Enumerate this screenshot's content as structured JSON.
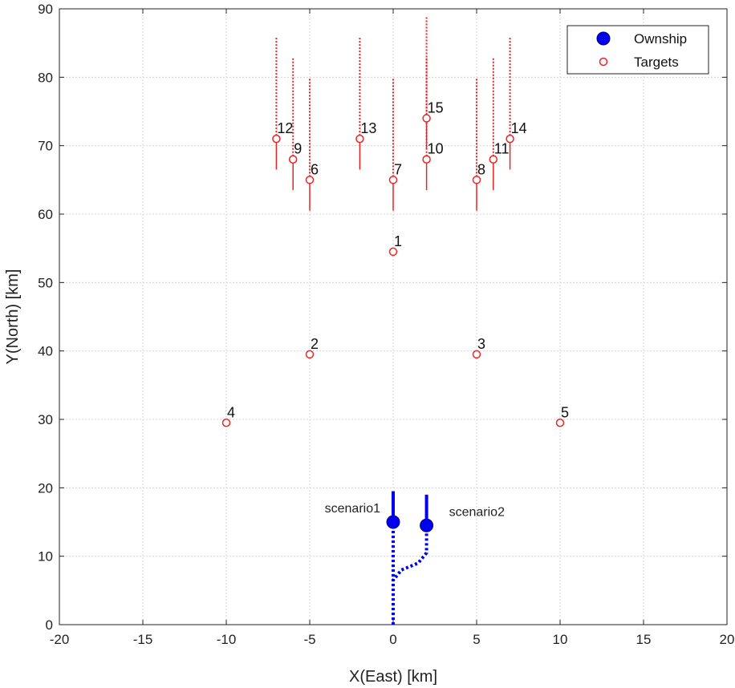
{
  "chart_data": {
    "type": "scatter",
    "xlabel": "X(East) [km]",
    "ylabel": "Y(North) [km]",
    "xlim": [
      -20,
      20
    ],
    "ylim": [
      0,
      90
    ],
    "xticks": [
      -20,
      -15,
      -10,
      -5,
      0,
      5,
      10,
      15,
      20
    ],
    "yticks": [
      0,
      10,
      20,
      30,
      40,
      50,
      60,
      70,
      80,
      90
    ],
    "grid": true,
    "legend": {
      "placement": "top-right",
      "entries": [
        {
          "name": "Ownship",
          "marker": "filled-circle",
          "color": "#0000ee"
        },
        {
          "name": "Targets",
          "marker": "open-circle",
          "color": "#ee2222"
        }
      ]
    },
    "ownship": [
      {
        "label": "scenario1",
        "x": 0,
        "y": 15,
        "heading_to_y": 19.5,
        "track": [
          [
            0,
            0
          ],
          [
            0,
            15
          ]
        ]
      },
      {
        "label": "scenario2",
        "x": 2,
        "y": 14.5,
        "heading_to_y": 19,
        "track": [
          [
            0,
            0
          ],
          [
            0,
            6.5
          ],
          [
            0.5,
            8
          ],
          [
            1.5,
            9
          ],
          [
            2,
            10.5
          ],
          [
            2,
            14.5
          ]
        ]
      }
    ],
    "targets": [
      {
        "label": "1",
        "x": 0,
        "y": 54.5
      },
      {
        "label": "2",
        "x": -5,
        "y": 39.5
      },
      {
        "label": "3",
        "x": 5,
        "y": 39.5
      },
      {
        "label": "4",
        "x": -10,
        "y": 29.5
      },
      {
        "label": "5",
        "x": 10,
        "y": 29.5
      },
      {
        "label": "6",
        "x": -5,
        "y": 65,
        "solid_to_y": 60.5,
        "dotted_to_y": 80
      },
      {
        "label": "7",
        "x": 0,
        "y": 65,
        "solid_to_y": 60.5,
        "dotted_to_y": 80
      },
      {
        "label": "8",
        "x": 5,
        "y": 65,
        "solid_to_y": 60.5,
        "dotted_to_y": 80
      },
      {
        "label": "9",
        "x": -6,
        "y": 68,
        "solid_to_y": 63.5,
        "dotted_to_y": 83
      },
      {
        "label": "10",
        "x": 2,
        "y": 68,
        "solid_to_y": 63.5,
        "dotted_to_y": 83
      },
      {
        "label": "11",
        "x": 6,
        "y": 68,
        "solid_to_y": 63.5,
        "dotted_to_y": 83
      },
      {
        "label": "12",
        "x": -7,
        "y": 71,
        "solid_to_y": 66.5,
        "dotted_to_y": 86
      },
      {
        "label": "13",
        "x": -2,
        "y": 71,
        "solid_to_y": 66.5,
        "dotted_to_y": 86
      },
      {
        "label": "14",
        "x": 7,
        "y": 71,
        "solid_to_y": 66.5,
        "dotted_to_y": 86
      },
      {
        "label": "15",
        "x": 2,
        "y": 74,
        "solid_to_y": 69.5,
        "dotted_to_y": 89
      }
    ],
    "colors": {
      "ownship": "#0000ee",
      "target": "#ee2222",
      "grid": "#d6d6d6",
      "axis": "#222222"
    }
  }
}
